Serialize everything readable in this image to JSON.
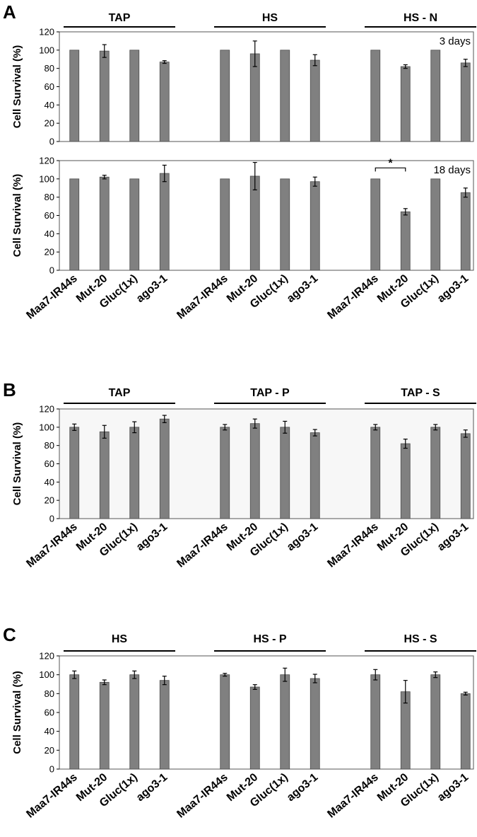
{
  "panels": [
    {
      "letter": "A",
      "group_titles": [
        "TAP",
        "HS",
        "HS - N"
      ]
    },
    {
      "letter": "B",
      "group_titles": [
        "TAP",
        "TAP - P",
        "TAP - S"
      ]
    },
    {
      "letter": "C",
      "group_titles": [
        "HS",
        "HS - P",
        "HS - S"
      ]
    }
  ],
  "chart_data": [
    {
      "id": "A-top",
      "panel": "A",
      "type": "bar",
      "annotation": "3 days",
      "ylabel": "Cell Survival (%)",
      "ylim": [
        0,
        120
      ],
      "yticks": [
        0,
        20,
        40,
        60,
        80,
        100,
        120
      ],
      "groups": [
        "TAP",
        "HS",
        "HS - N"
      ],
      "categories": [
        "Maa7-IR44s",
        "Mut-20",
        "Gluc(1x)",
        "ago3-1"
      ],
      "values": [
        [
          100,
          99,
          100,
          87
        ],
        [
          100,
          96,
          100,
          89
        ],
        [
          100,
          82,
          100,
          86
        ]
      ],
      "errors": [
        [
          0.5,
          7,
          0.5,
          1.5
        ],
        [
          0.5,
          14,
          0.5,
          6
        ],
        [
          0.5,
          2,
          0.5,
          4
        ]
      ],
      "show_xlabels": false,
      "background": "#ffffff"
    },
    {
      "id": "A-bottom",
      "panel": "A",
      "type": "bar",
      "annotation": "18 days",
      "significance": {
        "label": "*",
        "group": 2,
        "from": 0,
        "to": 1
      },
      "ylabel": "Cell Survival (%)",
      "ylim": [
        0,
        120
      ],
      "yticks": [
        0,
        20,
        40,
        60,
        80,
        100,
        120
      ],
      "groups": [
        "TAP",
        "HS",
        "HS - N"
      ],
      "categories": [
        "Maa7-IR44s",
        "Mut-20",
        "Gluc(1x)",
        "ago3-1"
      ],
      "values": [
        [
          100,
          102,
          100,
          106
        ],
        [
          100,
          103,
          100,
          97
        ],
        [
          100,
          64,
          100,
          85
        ]
      ],
      "errors": [
        [
          0.5,
          2,
          0.5,
          9
        ],
        [
          0.5,
          15,
          0.5,
          5
        ],
        [
          0.5,
          3.5,
          0.5,
          5
        ]
      ],
      "show_xlabels": true,
      "background": "#ffffff"
    },
    {
      "id": "B",
      "panel": "B",
      "type": "bar",
      "annotation": "",
      "ylabel": "Cell Survival (%)",
      "ylim": [
        0,
        120
      ],
      "yticks": [
        0,
        20,
        40,
        60,
        80,
        100,
        120
      ],
      "groups": [
        "TAP",
        "TAP - P",
        "TAP - S"
      ],
      "categories": [
        "Maa7-IR44s",
        "Mut-20",
        "Gluc(1x)",
        "ago3-1"
      ],
      "values": [
        [
          100,
          95,
          100,
          109
        ],
        [
          100,
          104,
          100,
          94
        ],
        [
          100,
          82,
          100,
          93
        ]
      ],
      "errors": [
        [
          3.5,
          7,
          6,
          4
        ],
        [
          3,
          5,
          6.5,
          3.5
        ],
        [
          3,
          5,
          3,
          4
        ]
      ],
      "show_xlabels": true,
      "background": "#f7f7f7"
    },
    {
      "id": "C",
      "panel": "C",
      "type": "bar",
      "annotation": "",
      "ylabel": "Cell Survival (%)",
      "ylim": [
        0,
        120
      ],
      "yticks": [
        0,
        20,
        40,
        60,
        80,
        100,
        120
      ],
      "groups": [
        "HS",
        "HS - P",
        "HS - S"
      ],
      "categories": [
        "Maa7-IR44s",
        "Mut-20",
        "Gluc(1x)",
        "ago3-1"
      ],
      "values": [
        [
          100,
          92,
          100,
          94
        ],
        [
          100,
          87,
          100,
          96
        ],
        [
          100,
          82,
          100,
          80
        ]
      ],
      "errors": [
        [
          4,
          2.5,
          4,
          4.5
        ],
        [
          1.5,
          2.5,
          7,
          4.5
        ],
        [
          5.5,
          12,
          3,
          1.5
        ]
      ],
      "show_xlabels": true,
      "background": "#ffffff"
    }
  ],
  "colors": {
    "bar": "#808080",
    "bar_edge": "#4d4d4d",
    "axis": "#000000"
  }
}
